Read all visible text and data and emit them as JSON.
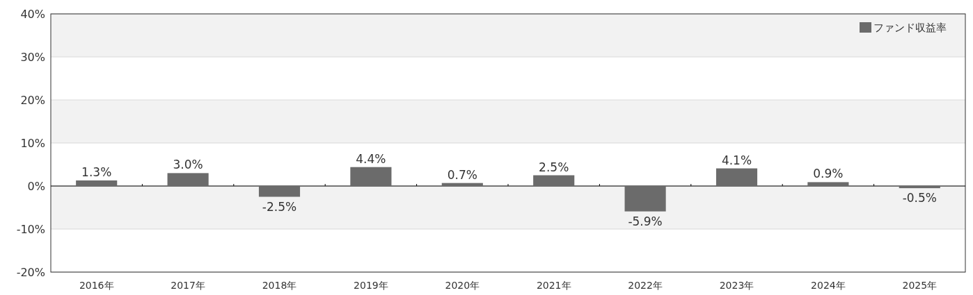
{
  "chart_data": {
    "type": "bar",
    "categories": [
      "2016年",
      "2017年",
      "2018年",
      "2019年",
      "2020年",
      "2021年",
      "2022年",
      "2023年",
      "2024年",
      "2025年"
    ],
    "series": [
      {
        "name": "ファンド収益率",
        "color": "#6b6b6b",
        "values": [
          1.3,
          3.0,
          -2.5,
          4.4,
          0.7,
          2.5,
          -5.9,
          4.1,
          0.9,
          -0.5
        ],
        "value_labels": [
          "1.3%",
          "3.0%",
          "-2.5%",
          "4.4%",
          "0.7%",
          "2.5%",
          "-5.9%",
          "4.1%",
          "0.9%",
          "-0.5%"
        ]
      }
    ],
    "ylim": [
      -20,
      40
    ],
    "yticks": [
      {
        "value": -20,
        "label": "-20%"
      },
      {
        "value": -10,
        "label": "-10%"
      },
      {
        "value": 0,
        "label": "0%"
      },
      {
        "value": 10,
        "label": "10%"
      },
      {
        "value": 20,
        "label": "20%"
      },
      {
        "value": 30,
        "label": "30%"
      },
      {
        "value": 40,
        "label": "40%"
      }
    ],
    "grid": "y",
    "legend": "top right"
  }
}
